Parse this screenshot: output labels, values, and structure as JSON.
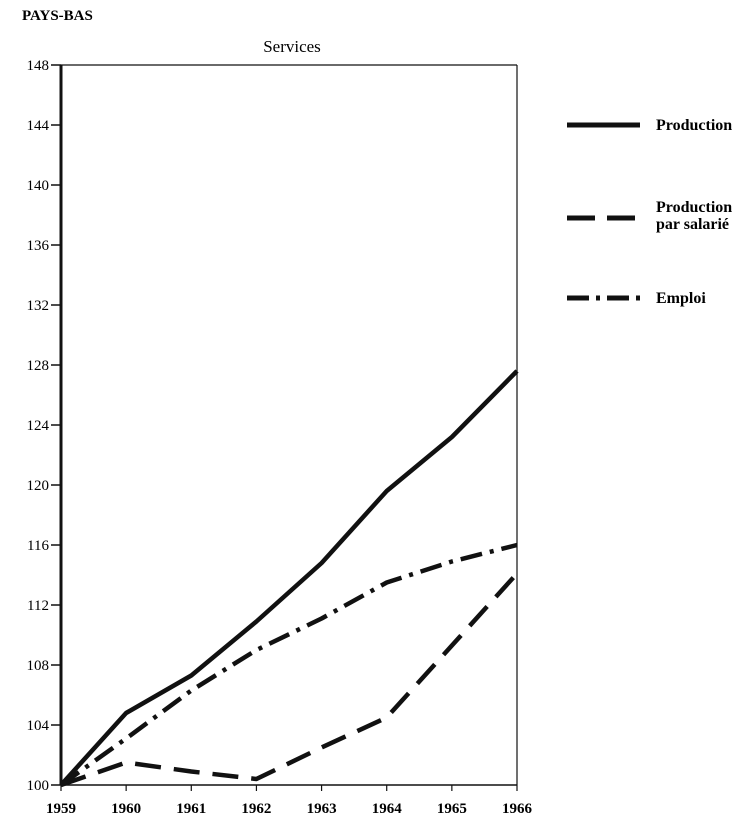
{
  "page": {
    "header": "PAYS-BAS"
  },
  "chart_data": {
    "type": "line",
    "title": "Services",
    "xlabel": "",
    "ylabel": "",
    "x": [
      1959,
      1960,
      1961,
      1962,
      1963,
      1964,
      1965,
      1966
    ],
    "xlim": [
      1959,
      1966
    ],
    "ylim": [
      100,
      148
    ],
    "yticks": [
      100,
      104,
      108,
      112,
      116,
      120,
      124,
      128,
      132,
      136,
      140,
      144,
      148
    ],
    "grid": false,
    "legend_position": "right",
    "series": [
      {
        "name": "Production",
        "style": "solid",
        "values": [
          100,
          104.8,
          107.3,
          110.9,
          114.8,
          119.6,
          123.2,
          127.6
        ]
      },
      {
        "name": "Production par salarié",
        "legend_lines": [
          "Production",
          "par salarié"
        ],
        "style": "dashed",
        "values": [
          100,
          101.5,
          100.9,
          100.4,
          102.5,
          104.5,
          109.3,
          114.1
        ]
      },
      {
        "name": "Emploi",
        "style": "dashdot",
        "values": [
          100,
          103.1,
          106.3,
          109.0,
          111.1,
          113.5,
          114.9,
          116.0
        ]
      }
    ]
  }
}
